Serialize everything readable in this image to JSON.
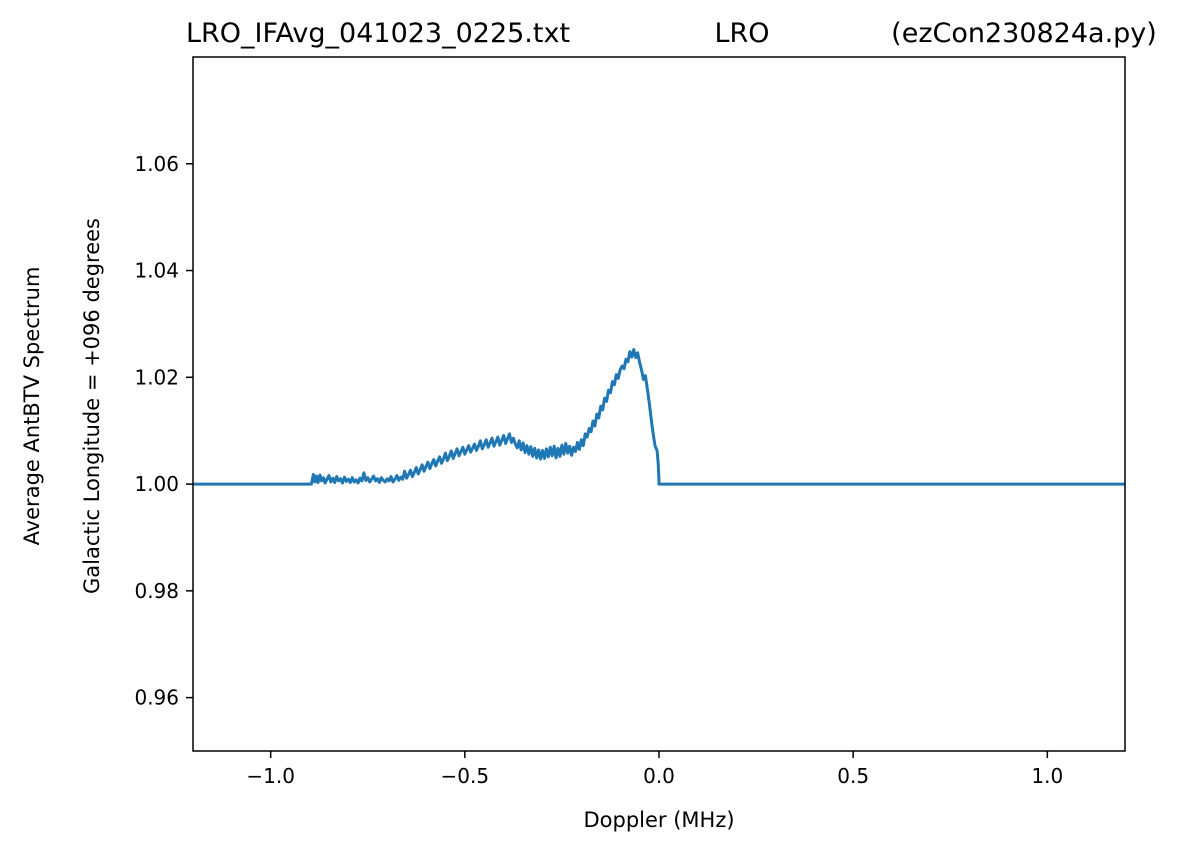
{
  "title": {
    "left": "LRO_IFAvg_041023_0225.txt",
    "center": "LRO",
    "right": "(ezCon230824a.py)"
  },
  "chart_data": {
    "type": "line",
    "title": "LRO_IFAvg_041023_0225.txt LRO (ezCon230824a.py)",
    "xlabel": "Doppler (MHz)",
    "ylabel_lines": [
      "Average AntBTV Spectrum",
      "Galactic Longitude = +096 degrees"
    ],
    "xlim": [
      -1.2,
      1.2
    ],
    "ylim": [
      0.95,
      1.08
    ],
    "xticks": [
      -1.0,
      -0.5,
      0.0,
      0.5,
      1.0
    ],
    "xtick_labels": [
      "−1.0",
      "−0.5",
      "0.0",
      "0.5",
      "1.0"
    ],
    "yticks": [
      0.96,
      0.98,
      1.0,
      1.02,
      1.04,
      1.06
    ],
    "ytick_labels": [
      "0.96",
      "0.98",
      "1.00",
      "1.02",
      "1.04",
      "1.06"
    ],
    "grid": false,
    "legend": false,
    "series": [
      {
        "color": "#1f77b4",
        "x": [
          -1.2,
          -0.895,
          -0.89,
          -0.886,
          -0.882,
          -0.878,
          -0.873,
          -0.869,
          -0.864,
          -0.86,
          -0.855,
          -0.85,
          -0.845,
          -0.84,
          -0.835,
          -0.83,
          -0.825,
          -0.82,
          -0.815,
          -0.81,
          -0.805,
          -0.8,
          -0.795,
          -0.79,
          -0.785,
          -0.78,
          -0.775,
          -0.77,
          -0.765,
          -0.76,
          -0.755,
          -0.75,
          -0.745,
          -0.74,
          -0.735,
          -0.73,
          -0.725,
          -0.72,
          -0.715,
          -0.71,
          -0.705,
          -0.7,
          -0.695,
          -0.69,
          -0.685,
          -0.68,
          -0.675,
          -0.67,
          -0.665,
          -0.66,
          -0.655,
          -0.65,
          -0.645,
          -0.64,
          -0.635,
          -0.63,
          -0.625,
          -0.62,
          -0.615,
          -0.61,
          -0.605,
          -0.6,
          -0.595,
          -0.59,
          -0.585,
          -0.58,
          -0.575,
          -0.57,
          -0.565,
          -0.56,
          -0.555,
          -0.55,
          -0.545,
          -0.54,
          -0.535,
          -0.53,
          -0.525,
          -0.52,
          -0.515,
          -0.51,
          -0.505,
          -0.5,
          -0.495,
          -0.49,
          -0.485,
          -0.48,
          -0.475,
          -0.47,
          -0.465,
          -0.46,
          -0.455,
          -0.45,
          -0.445,
          -0.44,
          -0.435,
          -0.43,
          -0.425,
          -0.42,
          -0.415,
          -0.41,
          -0.405,
          -0.4,
          -0.395,
          -0.39,
          -0.385,
          -0.38,
          -0.375,
          -0.37,
          -0.365,
          -0.36,
          -0.355,
          -0.35,
          -0.345,
          -0.34,
          -0.335,
          -0.33,
          -0.325,
          -0.32,
          -0.315,
          -0.31,
          -0.305,
          -0.3,
          -0.295,
          -0.29,
          -0.285,
          -0.28,
          -0.275,
          -0.27,
          -0.265,
          -0.26,
          -0.255,
          -0.25,
          -0.245,
          -0.24,
          -0.235,
          -0.23,
          -0.225,
          -0.22,
          -0.215,
          -0.21,
          -0.205,
          -0.2,
          -0.195,
          -0.19,
          -0.185,
          -0.18,
          -0.175,
          -0.17,
          -0.165,
          -0.16,
          -0.155,
          -0.15,
          -0.145,
          -0.14,
          -0.135,
          -0.13,
          -0.125,
          -0.12,
          -0.115,
          -0.11,
          -0.105,
          -0.1,
          -0.095,
          -0.09,
          -0.085,
          -0.08,
          -0.075,
          -0.07,
          -0.065,
          -0.06,
          -0.055,
          -0.05,
          -0.045,
          -0.04,
          -0.035,
          -0.03,
          -0.025,
          -0.02,
          -0.015,
          -0.01,
          -0.005,
          -0.002,
          0.0,
          0.0,
          0.002,
          1.2
        ],
        "y": [
          1.0,
          1.0,
          1.0018,
          1.0004,
          1.0015,
          1.0003,
          1.0017,
          1.0006,
          1.0012,
          1.0002,
          1.0009,
          1.0016,
          1.0004,
          1.0011,
          1.0003,
          1.0014,
          1.0006,
          1.001,
          1.0002,
          1.0013,
          1.0005,
          1.0009,
          1.0003,
          1.0012,
          1.0004,
          1.0008,
          1.0002,
          1.0011,
          1.0006,
          1.0021,
          1.0007,
          1.0012,
          1.0004,
          1.0009,
          1.0015,
          1.0006,
          1.001,
          1.0003,
          1.0012,
          1.0007,
          1.0004,
          1.001,
          1.0006,
          1.0014,
          1.0004,
          1.0009,
          1.0016,
          1.0007,
          1.0013,
          1.0009,
          1.0024,
          1.0011,
          1.0018,
          1.0026,
          1.0014,
          1.0022,
          1.0031,
          1.0019,
          1.0027,
          1.0036,
          1.0024,
          1.0033,
          1.0041,
          1.0029,
          1.0038,
          1.0046,
          1.0034,
          1.0043,
          1.0051,
          1.0039,
          1.0047,
          1.0058,
          1.0044,
          1.0052,
          1.0062,
          1.0048,
          1.0057,
          1.0066,
          1.0053,
          1.0061,
          1.0069,
          1.0056,
          1.0064,
          1.0072,
          1.006,
          1.0067,
          1.0075,
          1.0063,
          1.0071,
          1.0081,
          1.0066,
          1.0074,
          1.0083,
          1.0069,
          1.0077,
          1.0086,
          1.0071,
          1.0079,
          1.0088,
          1.0073,
          1.0082,
          1.0091,
          1.0076,
          1.0085,
          1.0094,
          1.0078,
          1.0086,
          1.0075,
          1.0068,
          1.0081,
          1.0064,
          1.0077,
          1.0059,
          1.0072,
          1.0056,
          1.007,
          1.0052,
          1.0067,
          1.0049,
          1.0064,
          1.0047,
          1.0063,
          1.0048,
          1.0066,
          1.0051,
          1.0069,
          1.0053,
          1.0071,
          1.0049,
          1.0067,
          1.0052,
          1.0073,
          1.0056,
          1.0076,
          1.0058,
          1.0071,
          1.0054,
          1.0069,
          1.0061,
          1.0078,
          1.0065,
          1.0083,
          1.0072,
          1.0094,
          1.0088,
          1.0104,
          1.0098,
          1.0118,
          1.0109,
          1.0131,
          1.0124,
          1.0146,
          1.0139,
          1.0161,
          1.0155,
          1.0176,
          1.0171,
          1.0192,
          1.0186,
          1.0205,
          1.0198,
          1.0214,
          1.0221,
          1.0216,
          1.0234,
          1.0229,
          1.0248,
          1.0238,
          1.0252,
          1.0237,
          1.0246,
          1.0228,
          1.0214,
          1.0196,
          1.0203,
          1.0178,
          1.0152,
          1.0121,
          1.0094,
          1.0071,
          1.0063,
          1.0038,
          1.0005,
          1.0,
          1.0,
          1.0
        ]
      }
    ]
  }
}
